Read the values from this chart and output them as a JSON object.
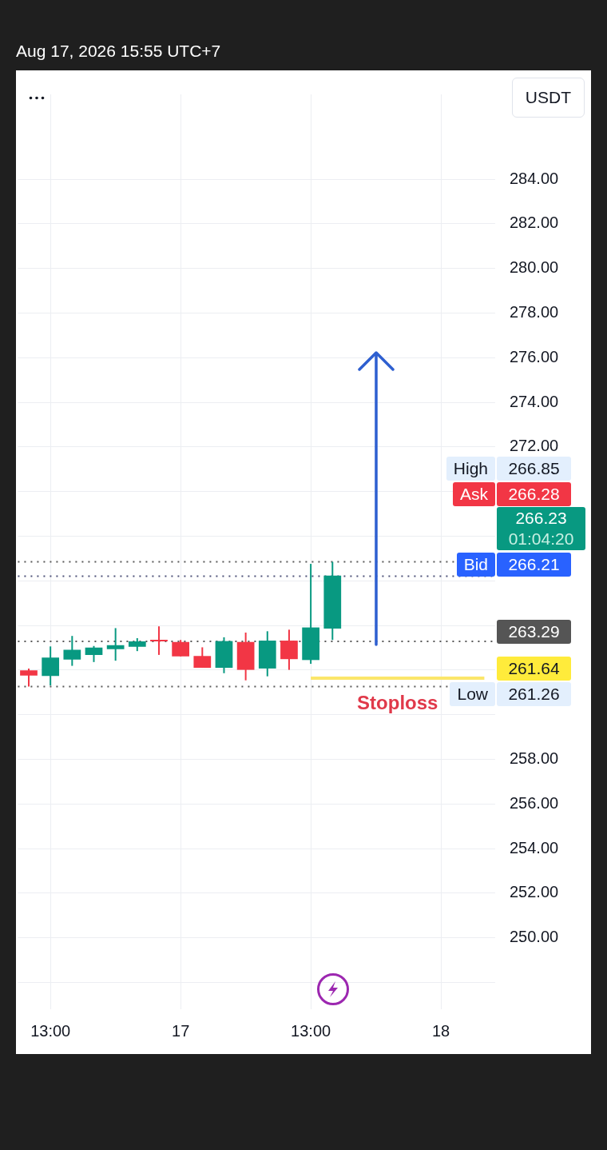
{
  "chart_data": {
    "type": "candlestick",
    "title": "Aug 17, 2026 15:55 UTC+7",
    "ylabel": "USDT",
    "categories": [
      null,
      "13:00",
      null,
      null,
      null,
      null,
      null,
      "17",
      null,
      null,
      null,
      null,
      null,
      "13:00",
      null,
      null,
      null,
      null,
      null,
      "18",
      null,
      null
    ],
    "series": [
      {
        "ohlc": [
          [
            261.99,
            262.07,
            261.26,
            261.75
          ],
          [
            261.74,
            263.06,
            261.31,
            262.56
          ],
          [
            262.47,
            263.53,
            262.19,
            262.91
          ],
          [
            262.68,
            263.08,
            262.36,
            263.01
          ],
          [
            262.94,
            263.88,
            262.42,
            263.12
          ],
          [
            263.04,
            263.43,
            262.85,
            263.29
          ],
          [
            263.32,
            263.96,
            262.68,
            263.29
          ],
          [
            263.26,
            263.35,
            262.61,
            262.61
          ],
          [
            262.63,
            263.02,
            262.1,
            262.1
          ],
          [
            262.1,
            263.47,
            261.86,
            263.3
          ],
          [
            263.26,
            263.68,
            261.54,
            262.01
          ],
          [
            262.07,
            263.74,
            261.72,
            263.32
          ],
          [
            263.32,
            263.81,
            262.01,
            262.49
          ],
          [
            262.45,
            266.76,
            262.28,
            263.91
          ],
          [
            263.86,
            266.85,
            263.35,
            266.23
          ],
          null,
          null,
          null,
          null,
          null,
          null,
          null
        ],
        "colors": [
          "#f23645",
          "#089981",
          "#089981",
          "#089981",
          "#089981",
          "#089981",
          "#f23645",
          "#f23645",
          "#f23645",
          "#089981",
          "#f23645",
          "#089981",
          "#f23645",
          "#089981",
          "#089981",
          null,
          null,
          null,
          null,
          null,
          null,
          null
        ]
      },
      {
        "type": "line",
        "name": "Stoploss",
        "color": "#fbe66a",
        "values": [
          null,
          null,
          null,
          null,
          null,
          null,
          null,
          null,
          null,
          null,
          null,
          null,
          null,
          261.64,
          261.64,
          261.64,
          261.64,
          261.64,
          261.64,
          261.64,
          261.64,
          261.64
        ]
      }
    ],
    "ylim": [
      246.8,
      287.8
    ],
    "yticks": [
      {
        "value": 248,
        "label": null
      },
      {
        "value": 250,
        "label": "250.00"
      },
      {
        "value": 252,
        "label": "252.00"
      },
      {
        "value": 254,
        "label": "254.00"
      },
      {
        "value": 256,
        "label": "256.00"
      },
      {
        "value": 258,
        "label": "258.00"
      },
      {
        "value": 260,
        "label": null
      },
      {
        "value": 262,
        "label": null
      },
      {
        "value": 264,
        "label": null
      },
      {
        "value": 266,
        "label": null
      },
      {
        "value": 268,
        "label": null
      },
      {
        "value": 270,
        "label": null
      },
      {
        "value": 272,
        "label": "272.00"
      },
      {
        "value": 274,
        "label": "274.00"
      },
      {
        "value": 276,
        "label": "276.00"
      },
      {
        "value": 278,
        "label": "278.00"
      },
      {
        "value": 280,
        "label": "280.00"
      },
      {
        "value": 282,
        "label": "282.00"
      },
      {
        "value": 284,
        "label": "284.00"
      }
    ],
    "ref_lines": [
      {
        "axis": "y",
        "value": 266.85,
        "color": "#5a5a5a",
        "line_style": "dotted"
      },
      {
        "axis": "y",
        "value": 266.21,
        "color": "#50537a",
        "line_style": "dotted"
      },
      {
        "axis": "y",
        "value": 263.29,
        "color": "#5a5a5a",
        "line_style": "dotted"
      },
      {
        "axis": "y",
        "value": 261.26,
        "color": "#5a5a5a",
        "line_style": "dotted"
      }
    ],
    "annotations": [
      "High",
      "266.85",
      "Ask",
      "266.28",
      "266.23",
      "01:04:20",
      "Bid",
      "266.21",
      "263.29",
      "261.64",
      "Low",
      "261.26"
    ],
    "grid": true,
    "legend": false
  }
}
